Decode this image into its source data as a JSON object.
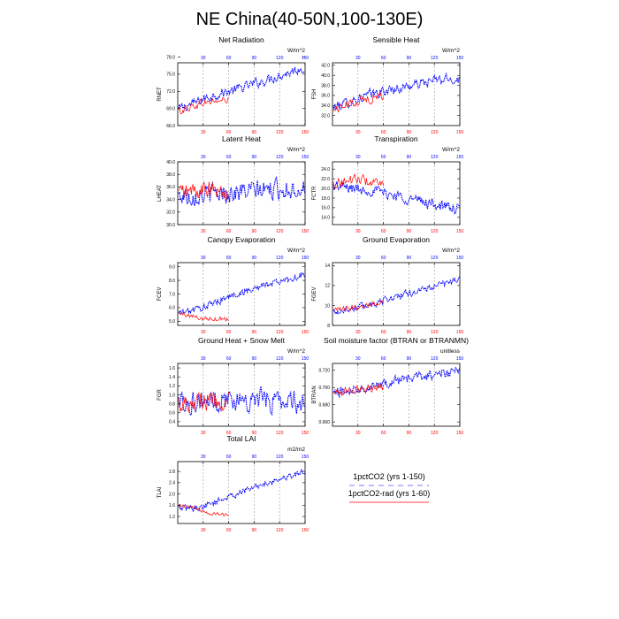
{
  "title": "NE China(40-50N,100-130E)",
  "colors": {
    "series_a": "#0000ff",
    "series_b": "#ff0000",
    "grid": "#999999",
    "axis": "#000000"
  },
  "legend": {
    "placement": "bottom-right",
    "items": [
      {
        "label": "1pctCO2 (yrs 1-150)",
        "color": "#0000ff",
        "style": "dashed"
      },
      {
        "label": "1pctCO2-rad (yrs 1-60)",
        "color": "#ff0000",
        "style": "solid"
      }
    ]
  },
  "chart_data": [
    {
      "type": "line",
      "title": "Net Radiation",
      "ylabel": "RNET",
      "units": "W/m^2",
      "xlim": [
        0,
        150
      ],
      "ylim": [
        66,
        77
      ],
      "x_ticks_top": [
        "30",
        "60",
        "90",
        "120",
        "150"
      ],
      "x_ticks_bottom": [
        "30",
        "60",
        "90",
        "120",
        "150"
      ],
      "y_ticks": [
        66.0,
        69.0,
        72.0,
        75.0,
        78.0
      ],
      "y_tick_labels": [
        "66.0",
        "69.0",
        "72.0",
        "75.0",
        "78.0"
      ],
      "grid_x": [
        30,
        60,
        90,
        120
      ],
      "series": [
        {
          "name": "1pctCO2 (yrs 1-150)",
          "x_range": [
            1,
            150
          ],
          "trend": [
            [
              0,
              68.8
            ],
            [
              40,
              71.2
            ],
            [
              80,
              72.8
            ],
            [
              120,
              74.8
            ],
            [
              150,
              76.2
            ]
          ],
          "noise": 1.2
        },
        {
          "name": "1pctCO2-rad (yrs 1-60)",
          "x_range": [
            1,
            60
          ],
          "trend": [
            [
              0,
              68.5
            ],
            [
              30,
              70.0
            ],
            [
              60,
              70.5
            ]
          ],
          "noise": 1.0
        }
      ]
    },
    {
      "type": "line",
      "title": "Sensible Heat",
      "ylabel": "FSH",
      "units": "W/m^2",
      "xlim": [
        0,
        150
      ],
      "ylim": [
        30,
        42.5
      ],
      "x_ticks_top": [
        "30",
        "60",
        "90",
        "120",
        "150"
      ],
      "x_ticks_bottom": [
        "30",
        "60",
        "90",
        "120",
        "150"
      ],
      "y_ticks": [
        32,
        34,
        36,
        38,
        40,
        42
      ],
      "y_tick_labels": [
        "32.0",
        "34.0",
        "36.0",
        "38.0",
        "40.0",
        "42.0"
      ],
      "grid_x": [
        30,
        60,
        90,
        120
      ],
      "series": [
        {
          "name": "1pctCO2 (yrs 1-150)",
          "x_range": [
            1,
            150
          ],
          "trend": [
            [
              0,
              33.5
            ],
            [
              40,
              36.0
            ],
            [
              80,
              37.5
            ],
            [
              120,
              39.0
            ],
            [
              150,
              39.3
            ]
          ],
          "noise": 1.4
        },
        {
          "name": "1pctCO2-rad (yrs 1-60)",
          "x_range": [
            1,
            60
          ],
          "trend": [
            [
              0,
              33.0
            ],
            [
              30,
              35.0
            ],
            [
              60,
              35.8
            ]
          ],
          "noise": 1.3
        }
      ]
    },
    {
      "type": "line",
      "title": "Latent Heat",
      "ylabel": "LHEAT",
      "units": "W/m^2",
      "xlim": [
        0,
        150
      ],
      "ylim": [
        30,
        40
      ],
      "x_ticks_top": [
        "30",
        "60",
        "90",
        "120",
        "150"
      ],
      "x_ticks_bottom": [
        "30",
        "60",
        "90",
        "120",
        "150"
      ],
      "y_ticks": [
        30,
        32,
        34,
        36,
        38,
        40
      ],
      "y_tick_labels": [
        "30.0",
        "32.0",
        "34.0",
        "36.0",
        "38.0",
        "40.0"
      ],
      "grid_x": [
        30,
        60,
        90,
        120
      ],
      "series": [
        {
          "name": "1pctCO2 (yrs 1-150)",
          "x_range": [
            1,
            150
          ],
          "trend": [
            [
              0,
              34.5
            ],
            [
              50,
              35.0
            ],
            [
              100,
              35.5
            ],
            [
              150,
              35.8
            ]
          ],
          "noise": 2.2
        },
        {
          "name": "1pctCO2-rad (yrs 1-60)",
          "x_range": [
            1,
            60
          ],
          "trend": [
            [
              0,
              35.0
            ],
            [
              30,
              35.5
            ],
            [
              60,
              35.0
            ]
          ],
          "noise": 2.0
        }
      ]
    },
    {
      "type": "line",
      "title": "Transpiration",
      "ylabel": "FCTR",
      "units": "W/m^2",
      "xlim": [
        0,
        150
      ],
      "ylim": [
        12.5,
        25.5
      ],
      "x_ticks_top": [
        "30",
        "60",
        "90",
        "120",
        "150"
      ],
      "x_ticks_bottom": [
        "30",
        "60",
        "90",
        "120",
        "150"
      ],
      "y_ticks": [
        14,
        16,
        18,
        20,
        22,
        24
      ],
      "y_tick_labels": [
        "14.0",
        "16.0",
        "18.0",
        "20.0",
        "22.0",
        "24.0"
      ],
      "grid_x": [
        30,
        60,
        90,
        120
      ],
      "series": [
        {
          "name": "1pctCO2 (yrs 1-150)",
          "x_range": [
            1,
            150
          ],
          "trend": [
            [
              0,
              20.5
            ],
            [
              50,
              19.5
            ],
            [
              100,
              17.5
            ],
            [
              150,
              15.5
            ]
          ],
          "noise": 1.6
        },
        {
          "name": "1pctCO2-rad (yrs 1-60)",
          "x_range": [
            1,
            60
          ],
          "trend": [
            [
              0,
              21.0
            ],
            [
              30,
              22.0
            ],
            [
              60,
              20.5
            ]
          ],
          "noise": 1.5
        }
      ]
    },
    {
      "type": "line",
      "title": "Canopy Evaporation",
      "ylabel": "FCEV",
      "units": "W/m^2",
      "xlim": [
        0,
        150
      ],
      "ylim": [
        4.7,
        9.3
      ],
      "x_ticks_top": [
        "30",
        "60",
        "90",
        "120",
        "150"
      ],
      "x_ticks_bottom": [
        "30",
        "60",
        "90",
        "120",
        "150"
      ],
      "y_ticks": [
        5.0,
        6.0,
        7.0,
        8.0,
        9.0
      ],
      "y_tick_labels": [
        "5.0",
        "6.0",
        "7.0",
        "8.0",
        "9.0"
      ],
      "grid_x": [
        30,
        60,
        90,
        120
      ],
      "series": [
        {
          "name": "1pctCO2 (yrs 1-150)",
          "x_range": [
            1,
            150
          ],
          "trend": [
            [
              0,
              5.6
            ],
            [
              30,
              6.0
            ],
            [
              60,
              6.8
            ],
            [
              100,
              7.6
            ],
            [
              150,
              8.4
            ]
          ],
          "noise": 0.35
        },
        {
          "name": "1pctCO2-rad (yrs 1-60)",
          "x_range": [
            1,
            60
          ],
          "trend": [
            [
              0,
              5.6
            ],
            [
              30,
              5.2
            ],
            [
              60,
              5.2
            ]
          ],
          "noise": 0.25
        }
      ]
    },
    {
      "type": "line",
      "title": "Ground Evaporation",
      "ylabel": "FGEV",
      "units": "W/m^2",
      "xlim": [
        0,
        150
      ],
      "ylim": [
        8,
        14.3
      ],
      "x_ticks_top": [
        "30",
        "60",
        "90",
        "120",
        "150"
      ],
      "x_ticks_bottom": [
        "30",
        "60",
        "90",
        "120",
        "150"
      ],
      "y_ticks": [
        8,
        10,
        12,
        14
      ],
      "y_tick_labels": [
        "8",
        "10",
        "12",
        "14"
      ],
      "grid_x": [
        30,
        60,
        90,
        120
      ],
      "series": [
        {
          "name": "1pctCO2 (yrs 1-150)",
          "x_range": [
            1,
            150
          ],
          "trend": [
            [
              0,
              9.3
            ],
            [
              40,
              10.0
            ],
            [
              80,
              11.0
            ],
            [
              120,
              11.9
            ],
            [
              150,
              12.7
            ]
          ],
          "noise": 0.5
        },
        {
          "name": "1pctCO2-rad (yrs 1-60)",
          "x_range": [
            1,
            60
          ],
          "trend": [
            [
              0,
              9.4
            ],
            [
              30,
              9.9
            ],
            [
              60,
              10.4
            ]
          ],
          "noise": 0.4
        }
      ]
    },
    {
      "type": "line",
      "title": "Ground Heat + Snow Melt",
      "ylabel": "FGR",
      "units": "W/m^2",
      "xlim": [
        0,
        150
      ],
      "ylim": [
        0.3,
        1.7
      ],
      "x_ticks_top": [
        "30",
        "60",
        "90",
        "120",
        "150"
      ],
      "x_ticks_bottom": [
        "30",
        "60",
        "90",
        "120",
        "150"
      ],
      "y_ticks": [
        0.4,
        0.6,
        0.8,
        1.0,
        1.2,
        1.4,
        1.6
      ],
      "y_tick_labels": [
        "0.4",
        "0.6",
        "0.8",
        "1.0",
        "1.2",
        "1.4",
        "1.6"
      ],
      "grid_x": [
        30,
        60,
        90,
        120
      ],
      "series": [
        {
          "name": "1pctCO2 (yrs 1-150)",
          "x_range": [
            1,
            150
          ],
          "trend": [
            [
              0,
              0.85
            ],
            [
              75,
              0.9
            ],
            [
              150,
              0.85
            ]
          ],
          "noise": 0.35
        },
        {
          "name": "1pctCO2-rad (yrs 1-60)",
          "x_range": [
            1,
            60
          ],
          "trend": [
            [
              0,
              0.85
            ],
            [
              30,
              0.9
            ],
            [
              60,
              0.85
            ]
          ],
          "noise": 0.32
        }
      ]
    },
    {
      "type": "line",
      "title": "Soil moisture factor (BTRAN or BTRANMN)",
      "ylabel": "BTRAN",
      "units": "unitless",
      "xlim": [
        0,
        150
      ],
      "ylim": [
        0.655,
        0.728
      ],
      "x_ticks_top": [
        "30",
        "60",
        "90",
        "120",
        "150"
      ],
      "x_ticks_bottom": [
        "30",
        "60",
        "90",
        "120",
        "150"
      ],
      "y_ticks": [
        0.66,
        0.68,
        0.7,
        0.72
      ],
      "y_tick_labels": [
        "0.660",
        "0.680",
        "0.700",
        "0.720"
      ],
      "grid_x": [
        30,
        60,
        90,
        120
      ],
      "series": [
        {
          "name": "1pctCO2 (yrs 1-150)",
          "x_range": [
            1,
            150
          ],
          "trend": [
            [
              0,
              0.693
            ],
            [
              50,
              0.704
            ],
            [
              100,
              0.712
            ],
            [
              150,
              0.719
            ]
          ],
          "noise": 0.008
        },
        {
          "name": "1pctCO2-rad (yrs 1-60)",
          "x_range": [
            1,
            60
          ],
          "trend": [
            [
              0,
              0.693
            ],
            [
              30,
              0.698
            ],
            [
              60,
              0.702
            ]
          ],
          "noise": 0.007
        }
      ]
    },
    {
      "type": "line",
      "title": "Total LAI",
      "ylabel": "TLAI",
      "units": "m2/m2",
      "xlim": [
        0,
        150
      ],
      "ylim": [
        0.95,
        3.15
      ],
      "x_ticks_top": [
        "30",
        "60",
        "90",
        "120",
        "150"
      ],
      "x_ticks_bottom": [
        "30",
        "60",
        "90",
        "120",
        "150"
      ],
      "y_ticks": [
        1.2,
        1.6,
        2.0,
        2.4,
        2.8
      ],
      "y_tick_labels": [
        "1.2",
        "1.6",
        "2.0",
        "2.4",
        "2.8"
      ],
      "grid_x": [
        30,
        60,
        90,
        120
      ],
      "series": [
        {
          "name": "1pctCO2 (yrs 1-150)",
          "x_range": [
            1,
            150
          ],
          "trend": [
            [
              0,
              1.5
            ],
            [
              25,
              1.5
            ],
            [
              60,
              1.9
            ],
            [
              100,
              2.35
            ],
            [
              150,
              2.8
            ]
          ],
          "noise": 0.15
        },
        {
          "name": "1pctCO2-rad (yrs 1-60)",
          "x_range": [
            1,
            60
          ],
          "trend": [
            [
              0,
              1.6
            ],
            [
              20,
              1.5
            ],
            [
              35,
              1.3
            ],
            [
              60,
              1.25
            ]
          ],
          "noise": 0.08
        }
      ]
    }
  ]
}
